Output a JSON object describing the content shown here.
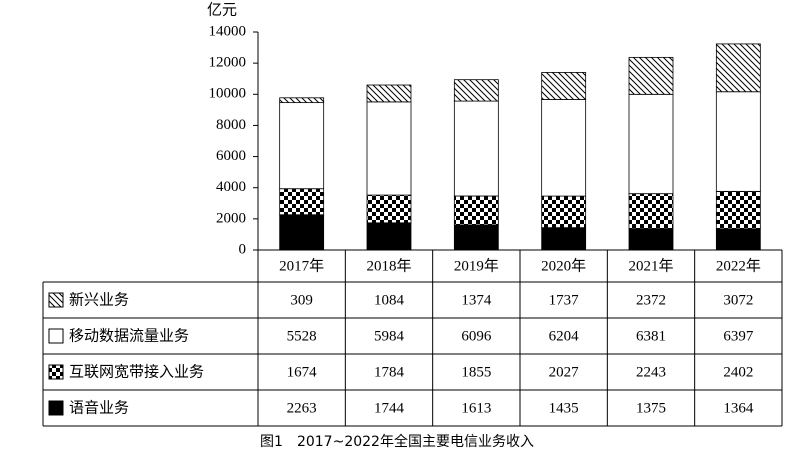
{
  "chart_data": {
    "type": "bar",
    "stacked": true,
    "y_label": "亿元",
    "caption": "图1　2017~2022年全国主要电信业务收入",
    "categories": [
      "2017年",
      "2018年",
      "2019年",
      "2020年",
      "2021年",
      "2022年"
    ],
    "series": [
      {
        "name": "语音业务",
        "pattern": "solid",
        "color": "#000000",
        "values": [
          2263,
          1744,
          1613,
          1435,
          1375,
          1364
        ]
      },
      {
        "name": "互联网宽带接入业务",
        "pattern": "checker",
        "color": "#000000",
        "values": [
          1674,
          1784,
          1855,
          2027,
          2243,
          2402
        ]
      },
      {
        "name": "移动数据流量业务",
        "pattern": "none",
        "color": "#000000",
        "values": [
          5528,
          5984,
          6096,
          6204,
          6381,
          6397
        ]
      },
      {
        "name": "新兴业务",
        "pattern": "hatch",
        "color": "#000000",
        "values": [
          309,
          1084,
          1374,
          1737,
          2372,
          3072
        ]
      }
    ],
    "ylim": [
      0,
      14000
    ],
    "yticks": [
      0,
      2000,
      4000,
      6000,
      8000,
      10000,
      12000,
      14000
    ]
  }
}
